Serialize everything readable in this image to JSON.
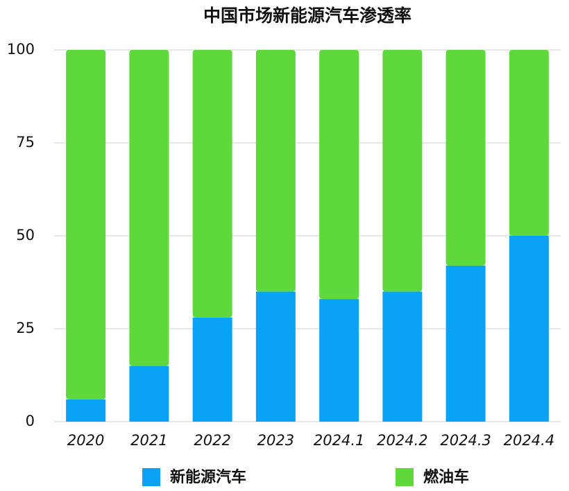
{
  "chart_data": {
    "type": "stacked_bar",
    "title": "中国市场新能源汽车渗透率",
    "categories": [
      "2020",
      "2021",
      "2022",
      "2023",
      "2024.1",
      "2024.2",
      "2024.3",
      "2024.4"
    ],
    "series": [
      {
        "name": "新能源汽车",
        "color": "#0aa2f5",
        "values": [
          6,
          15,
          28,
          35,
          33,
          35,
          42,
          50
        ]
      },
      {
        "name": "燃油车",
        "color": "#5fd83c",
        "values": [
          94,
          85,
          72,
          65,
          67,
          65,
          58,
          50
        ]
      }
    ],
    "ylim": [
      0,
      100
    ],
    "yticks": [
      0,
      25,
      50,
      75,
      100
    ],
    "grid": true
  }
}
